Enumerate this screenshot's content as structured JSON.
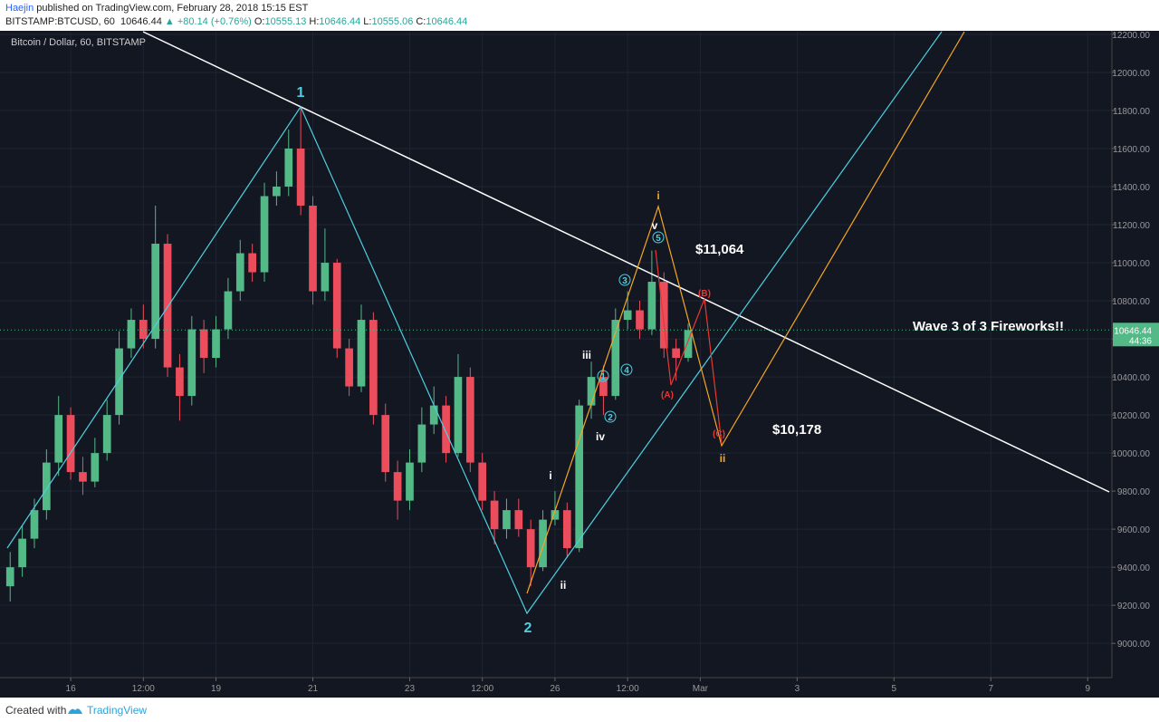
{
  "header": {
    "publisher": "Haejin",
    "published": "published on TradingView.com, February 28, 2018 15:15 EST",
    "symbol": "BITSTAMP:BTCUSD, 60",
    "last": "10646.44",
    "change": "▲ +80.14 (+0.76%)",
    "ohlc": [
      {
        "label": "O:",
        "value": "10555.13"
      },
      {
        "label": "H:",
        "value": "10646.44"
      },
      {
        "label": "L:",
        "value": "10555.06"
      },
      {
        "label": "C:",
        "value": "10646.44"
      }
    ]
  },
  "chart_data": {
    "type": "candlestick",
    "title": "Bitcoin / Dollar, 60, BITSTAMP",
    "up_color": "#53b987",
    "down_color": "#eb4d5c",
    "grid": true,
    "x": [
      14.75,
      15,
      15.25,
      15.5,
      15.75,
      16,
      16.25,
      16.5,
      16.75,
      17,
      17.25,
      17.5,
      17.75,
      18,
      18.25,
      18.5,
      18.75,
      19,
      19.25,
      19.5,
      19.75,
      20,
      20.25,
      20.5,
      20.75,
      21,
      21.25,
      21.5,
      21.75,
      22,
      22.25,
      22.5,
      22.75,
      23,
      23.25,
      23.5,
      23.75,
      24,
      24.25,
      24.5,
      24.75,
      25,
      25.25,
      25.5,
      25.75,
      26,
      26.25,
      26.5,
      26.75,
      27,
      27.25,
      27.5,
      27.75,
      28,
      28.25,
      28.5,
      28.75
    ],
    "open": [
      9300,
      9400,
      9550,
      9700,
      9950,
      10200,
      9900,
      9850,
      10000,
      10200,
      10550,
      10700,
      10600,
      11100,
      10450,
      10300,
      10650,
      10500,
      10650,
      10850,
      11050,
      10950,
      11350,
      11400,
      11600,
      11300,
      10850,
      11000,
      10550,
      10350,
      10700,
      10200,
      9900,
      9750,
      9950,
      10150,
      10250,
      10000,
      10400,
      9950,
      9750,
      9600,
      9700,
      9600,
      9400,
      9650,
      9700,
      9500,
      10250,
      10400,
      10300,
      10700,
      10750,
      10650,
      10900,
      10550,
      10500
    ],
    "high": [
      9480,
      9620,
      9760,
      10020,
      10300,
      10240,
      9980,
      10080,
      10280,
      10640,
      10760,
      10780,
      11300,
      11150,
      10520,
      10720,
      10700,
      10720,
      10920,
      11120,
      11100,
      11420,
      11480,
      11700,
      11820,
      11350,
      11180,
      11020,
      10600,
      10780,
      10740,
      10260,
      9960,
      10020,
      10240,
      10350,
      10300,
      10520,
      10450,
      10000,
      9800,
      9760,
      9760,
      9650,
      9700,
      9800,
      9740,
      10280,
      10480,
      10460,
      10760,
      10850,
      10800,
      11064,
      10950,
      10600,
      10680
    ],
    "low": [
      9220,
      9350,
      9500,
      9650,
      9880,
      9860,
      9780,
      9820,
      9960,
      10150,
      10500,
      10550,
      10550,
      10400,
      10170,
      10250,
      10420,
      10450,
      10600,
      10800,
      10900,
      10900,
      11300,
      11350,
      11250,
      10780,
      10800,
      10500,
      10300,
      10320,
      10150,
      9850,
      9650,
      9700,
      9900,
      10100,
      9950,
      9980,
      9900,
      9700,
      9520,
      9550,
      9560,
      9300,
      9380,
      9620,
      9450,
      9480,
      10180,
      10200,
      10280,
      10650,
      10600,
      10620,
      10500,
      10380,
      10480
    ],
    "close": [
      9400,
      9550,
      9700,
      9950,
      10200,
      9900,
      9850,
      10000,
      10200,
      10550,
      10700,
      10600,
      11100,
      10450,
      10300,
      10650,
      10500,
      10650,
      10850,
      11050,
      10950,
      11350,
      11400,
      11600,
      11300,
      10850,
      11000,
      10550,
      10350,
      10700,
      10200,
      9900,
      9750,
      9950,
      10150,
      10250,
      10000,
      10400,
      9950,
      9750,
      9600,
      9700,
      9600,
      9400,
      9650,
      9700,
      9500,
      10250,
      10400,
      10300,
      10700,
      10750,
      10650,
      10900,
      10550,
      10500,
      10646.44
    ],
    "xlim": [
      14.54,
      37.5
    ],
    "ylim": [
      8820,
      12214
    ],
    "xticks": [
      16,
      {
        "value": 17.5,
        "label": "12:00"
      },
      19,
      21,
      23,
      {
        "value": 24.5,
        "label": "12:00"
      },
      26,
      {
        "value": 27.5,
        "label": "12:00"
      },
      {
        "value": 29,
        "label": "Mar"
      },
      {
        "value": 31,
        "label": "3"
      },
      {
        "value": 33,
        "label": "5"
      },
      {
        "value": 35,
        "label": "7"
      },
      {
        "value": 37,
        "label": "9"
      }
    ],
    "yticks": [
      {
        "value": 9000,
        "label": "9000.00"
      },
      {
        "value": 9200,
        "label": "9200.00"
      },
      {
        "value": 9400,
        "label": "9400.00"
      },
      {
        "value": 9600,
        "label": "9600.00"
      },
      {
        "value": 9800,
        "label": "9800.00"
      },
      {
        "value": 10000,
        "label": "10000.00"
      },
      {
        "value": 10200,
        "label": "10200.00"
      },
      {
        "value": 10400,
        "label": "10400.00"
      },
      {
        "value": 10600,
        "label": "10600.00"
      },
      {
        "value": 10800,
        "label": "10800.00"
      },
      {
        "value": 11000,
        "label": "11000.00"
      },
      {
        "value": 11200,
        "label": "11200.00"
      },
      {
        "value": 11400,
        "label": "11400.00"
      },
      {
        "value": 11600,
        "label": "11600.00"
      },
      {
        "value": 11800,
        "label": "11800.00"
      },
      {
        "value": 12000,
        "label": "12000.00"
      },
      {
        "value": 12200,
        "label": "12200.00"
      }
    ],
    "price_label": "10646.44",
    "countdown": "44:36",
    "annotations": [
      {
        "text": "1",
        "color": "#4dd0e1"
      },
      {
        "text": "2",
        "color": "#4dd0e1"
      },
      {
        "text": "i",
        "color": "#f5a623"
      },
      {
        "text": "ii",
        "color": "#f5a623"
      },
      {
        "text": "i",
        "color": "#ffffff"
      },
      {
        "text": "ii",
        "color": "#ffffff"
      },
      {
        "text": "iii",
        "color": "#ffffff"
      },
      {
        "text": "iv",
        "color": "#ffffff"
      },
      {
        "text": "v",
        "color": "#ffffff"
      },
      {
        "text": "1",
        "color": "#4dd0e1"
      },
      {
        "text": "2",
        "color": "#4dd0e1"
      },
      {
        "text": "3",
        "color": "#4dd0e1"
      },
      {
        "text": "4",
        "color": "#4dd0e1"
      },
      {
        "text": "5",
        "color": "#4dd0e1"
      },
      {
        "text": "(A)",
        "color": "#e53935"
      },
      {
        "text": "(B)",
        "color": "#e53935"
      },
      {
        "text": "(C)",
        "color": "#e53935"
      },
      {
        "text": "$11,064",
        "color": "#ffffff"
      },
      {
        "text": "$10,178",
        "color": "#ffffff"
      },
      {
        "text": "Wave 3 of 3 Fireworks!!",
        "color": "#ffffff"
      }
    ]
  },
  "footer": {
    "created": "Created with",
    "brand": "TradingView"
  }
}
